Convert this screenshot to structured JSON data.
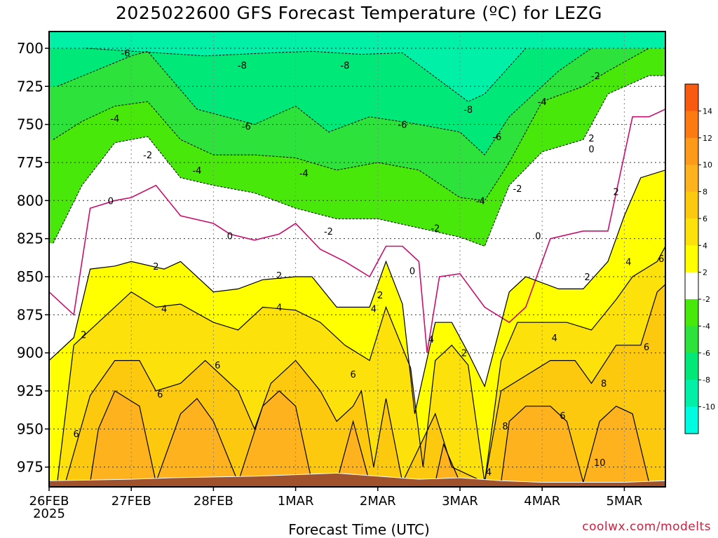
{
  "title": "2025022600 GFS Forecast Temperature (ºC) for LEZG",
  "xlabel": "Forecast Time (UTC)",
  "credit": "coolwx.com/modelts",
  "chart_data": {
    "type": "filled-contour",
    "y_axis": {
      "quantity": "pressure (hPa)",
      "ticks": [
        700,
        725,
        750,
        775,
        800,
        825,
        850,
        875,
        900,
        925,
        950,
        975
      ],
      "range": [
        988,
        689
      ]
    },
    "x_axis": {
      "ticks": [
        "26FEB",
        "27FEB",
        "28FEB",
        "1MAR",
        "2MAR",
        "3MAR",
        "4MAR",
        "5MAR"
      ],
      "tick_days": [
        0,
        1,
        2,
        3,
        4,
        5,
        6,
        7
      ],
      "range_days": [
        0,
        7.5
      ],
      "first_tick_sublabel": "2025"
    },
    "colorbar": {
      "labels": [
        14,
        12,
        10,
        8,
        6,
        4,
        2,
        -2,
        -4,
        -6,
        -8,
        -10
      ],
      "bins": [
        {
          "from": 16,
          "to": 14,
          "color": "#f85a10"
        },
        {
          "from": 14,
          "to": 12,
          "color": "#fb7a12"
        },
        {
          "from": 12,
          "to": 10,
          "color": "#fd9a1a"
        },
        {
          "from": 10,
          "to": 8,
          "color": "#fdb21e"
        },
        {
          "from": 8,
          "to": 6,
          "color": "#fdc90f"
        },
        {
          "from": 6,
          "to": 4,
          "color": "#fde10a"
        },
        {
          "from": 4,
          "to": 2,
          "color": "#ffff00"
        },
        {
          "from": 2,
          "to": -2,
          "color": "#ffffff"
        },
        {
          "from": -2,
          "to": -4,
          "color": "#48e80a"
        },
        {
          "from": -4,
          "to": -6,
          "color": "#2de23b"
        },
        {
          "from": -6,
          "to": -8,
          "color": "#00e878"
        },
        {
          "from": -8,
          "to": -10,
          "color": "#00f0a8"
        },
        {
          "from": -10,
          "to": -12,
          "color": "#00fce0"
        }
      ]
    },
    "contour_labels": [
      "-8",
      "-6",
      "-4",
      "-2",
      "0",
      "2",
      "4",
      "6",
      "8",
      "10"
    ],
    "isotherms_approx": [
      {
        "level": -8,
        "points": [
          [
            0.45,
            700
          ],
          [
            1.9,
            705
          ],
          [
            2.7,
            703
          ],
          [
            3.2,
            702
          ],
          [
            3.8,
            704
          ],
          [
            4.3,
            703
          ],
          [
            5.1,
            735
          ],
          [
            5.3,
            730
          ],
          [
            5.8,
            700
          ]
        ]
      },
      {
        "level": -6,
        "points": [
          [
            0.1,
            725
          ],
          [
            1.0,
            705
          ],
          [
            1.2,
            702
          ],
          [
            1.8,
            740
          ],
          [
            2.5,
            750
          ],
          [
            3.0,
            738
          ],
          [
            3.4,
            755
          ],
          [
            3.9,
            745
          ],
          [
            4.5,
            750
          ],
          [
            5.0,
            755
          ],
          [
            5.3,
            770
          ],
          [
            5.6,
            745
          ],
          [
            6.2,
            715
          ],
          [
            6.6,
            700
          ]
        ]
      },
      {
        "level": -4,
        "points": [
          [
            0.05,
            760
          ],
          [
            0.4,
            748
          ],
          [
            0.8,
            738
          ],
          [
            1.2,
            735
          ],
          [
            1.6,
            760
          ],
          [
            2.0,
            770
          ],
          [
            2.5,
            770
          ],
          [
            3.0,
            772
          ],
          [
            3.5,
            780
          ],
          [
            4.0,
            775
          ],
          [
            4.5,
            780
          ],
          [
            5.0,
            798
          ],
          [
            5.3,
            800
          ],
          [
            5.6,
            775
          ],
          [
            6.0,
            735
          ],
          [
            6.5,
            725
          ],
          [
            6.8,
            715
          ],
          [
            7.3,
            700
          ]
        ]
      },
      {
        "level": -2,
        "points": [
          [
            0.05,
            828
          ],
          [
            0.4,
            790
          ],
          [
            0.8,
            762
          ],
          [
            1.2,
            758
          ],
          [
            1.6,
            785
          ],
          [
            2.0,
            790
          ],
          [
            2.5,
            795
          ],
          [
            3.0,
            805
          ],
          [
            3.5,
            812
          ],
          [
            4.0,
            812
          ],
          [
            4.5,
            818
          ],
          [
            5.0,
            824
          ],
          [
            5.3,
            830
          ],
          [
            5.6,
            790
          ],
          [
            6.0,
            768
          ],
          [
            6.5,
            760
          ],
          [
            6.8,
            730
          ],
          [
            7.3,
            718
          ],
          [
            7.5,
            718
          ]
        ]
      },
      {
        "level": 0,
        "points": [
          [
            0.0,
            860
          ],
          [
            0.3,
            875
          ],
          [
            0.5,
            805
          ],
          [
            0.8,
            800
          ],
          [
            1.0,
            798
          ],
          [
            1.3,
            790
          ],
          [
            1.6,
            810
          ],
          [
            2.0,
            815
          ],
          [
            2.2,
            822
          ],
          [
            2.5,
            826
          ],
          [
            2.8,
            822
          ],
          [
            3.0,
            815
          ],
          [
            3.3,
            832
          ],
          [
            3.6,
            840
          ],
          [
            3.9,
            850
          ],
          [
            4.1,
            830
          ],
          [
            4.3,
            830
          ],
          [
            4.5,
            840
          ],
          [
            4.6,
            900
          ],
          [
            4.75,
            850
          ],
          [
            5.0,
            848
          ],
          [
            5.3,
            870
          ],
          [
            5.6,
            880
          ],
          [
            5.8,
            870
          ],
          [
            6.1,
            825
          ],
          [
            6.5,
            820
          ],
          [
            6.8,
            820
          ],
          [
            7.1,
            745
          ],
          [
            7.3,
            745
          ],
          [
            7.5,
            740
          ]
        ]
      },
      {
        "level": 2,
        "points": [
          [
            0.0,
            905
          ],
          [
            0.3,
            890
          ],
          [
            0.5,
            845
          ],
          [
            0.8,
            843
          ],
          [
            1.0,
            840
          ],
          [
            1.4,
            845
          ],
          [
            1.6,
            840
          ],
          [
            2.0,
            860
          ],
          [
            2.3,
            858
          ],
          [
            2.6,
            852
          ],
          [
            3.0,
            850
          ],
          [
            3.2,
            850
          ],
          [
            3.5,
            870
          ],
          [
            3.9,
            870
          ],
          [
            4.1,
            840
          ],
          [
            4.3,
            868
          ],
          [
            4.45,
            940
          ],
          [
            4.7,
            880
          ],
          [
            4.9,
            880
          ],
          [
            5.1,
            900
          ],
          [
            5.3,
            922
          ],
          [
            5.6,
            860
          ],
          [
            5.8,
            850
          ],
          [
            6.2,
            858
          ],
          [
            6.5,
            858
          ],
          [
            6.8,
            840
          ],
          [
            7.0,
            810
          ],
          [
            7.2,
            785
          ],
          [
            7.5,
            780
          ]
        ]
      },
      {
        "level": 4,
        "points": [
          [
            0.1,
            985
          ],
          [
            0.3,
            895
          ],
          [
            0.6,
            880
          ],
          [
            1.0,
            860
          ],
          [
            1.3,
            870
          ],
          [
            1.6,
            868
          ],
          [
            2.0,
            880
          ],
          [
            2.3,
            885
          ],
          [
            2.6,
            870
          ],
          [
            3.0,
            872
          ],
          [
            3.3,
            880
          ],
          [
            3.6,
            895
          ],
          [
            3.9,
            905
          ],
          [
            4.1,
            870
          ],
          [
            4.4,
            910
          ],
          [
            4.55,
            975
          ],
          [
            4.7,
            905
          ],
          [
            4.9,
            895
          ],
          [
            5.1,
            908
          ],
          [
            5.3,
            985
          ],
          [
            5.5,
            905
          ],
          [
            5.7,
            880
          ],
          [
            6.0,
            880
          ],
          [
            6.3,
            880
          ],
          [
            6.6,
            885
          ],
          [
            6.9,
            865
          ],
          [
            7.1,
            850
          ],
          [
            7.4,
            840
          ],
          [
            7.5,
            830
          ]
        ]
      },
      {
        "level": 6,
        "points": [
          [
            0.2,
            985
          ],
          [
            0.5,
            928
          ],
          [
            0.8,
            905
          ],
          [
            1.1,
            905
          ],
          [
            1.3,
            925
          ],
          [
            1.6,
            920
          ],
          [
            1.9,
            905
          ],
          [
            2.3,
            925
          ],
          [
            2.5,
            950
          ],
          [
            2.7,
            920
          ],
          [
            3.0,
            905
          ],
          [
            3.3,
            925
          ],
          [
            3.5,
            945
          ],
          [
            3.7,
            935
          ],
          [
            3.8,
            925
          ],
          [
            3.95,
            975
          ],
          [
            4.1,
            930
          ],
          [
            4.3,
            985
          ],
          [
            4.7,
            940
          ],
          [
            4.9,
            975
          ],
          [
            5.3,
            985
          ],
          [
            5.5,
            925
          ],
          [
            5.8,
            915
          ],
          [
            6.1,
            905
          ],
          [
            6.4,
            905
          ],
          [
            6.6,
            920
          ],
          [
            6.9,
            895
          ],
          [
            7.2,
            895
          ],
          [
            7.4,
            860
          ],
          [
            7.5,
            855
          ]
        ]
      },
      {
        "level": 8,
        "points": [
          [
            0.5,
            985
          ],
          [
            0.6,
            950
          ],
          [
            0.8,
            925
          ],
          [
            1.1,
            935
          ],
          [
            1.3,
            985
          ],
          [
            1.6,
            940
          ],
          [
            1.8,
            930
          ],
          [
            2.0,
            945
          ],
          [
            2.3,
            985
          ],
          [
            2.6,
            935
          ],
          [
            2.8,
            925
          ],
          [
            3.0,
            935
          ],
          [
            3.2,
            985
          ],
          [
            3.5,
            985
          ],
          [
            3.7,
            945
          ],
          [
            3.9,
            985
          ],
          [
            4.7,
            985
          ],
          [
            4.8,
            960
          ],
          [
            5.0,
            985
          ],
          [
            5.5,
            985
          ],
          [
            5.6,
            945
          ],
          [
            5.8,
            935
          ],
          [
            6.1,
            935
          ],
          [
            6.3,
            945
          ],
          [
            6.5,
            985
          ],
          [
            6.7,
            945
          ],
          [
            6.9,
            935
          ],
          [
            7.1,
            940
          ],
          [
            7.3,
            985
          ]
        ]
      }
    ]
  }
}
